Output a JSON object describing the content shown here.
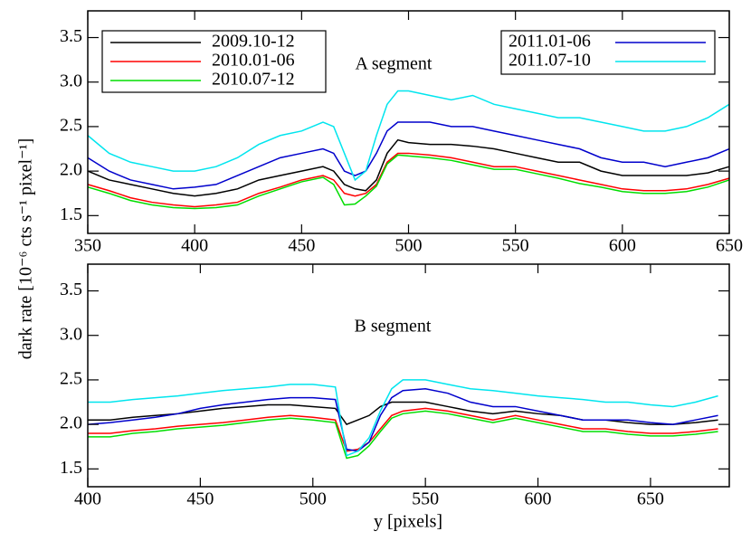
{
  "chart_data": [
    {
      "type": "line",
      "annotation": "A segment",
      "ylabel": "dark rate [10⁻⁶ cts s⁻¹ pixel⁻¹]",
      "x": [
        350,
        360,
        370,
        380,
        390,
        400,
        410,
        420,
        430,
        440,
        450,
        460,
        465,
        470,
        475,
        480,
        485,
        490,
        495,
        500,
        510,
        520,
        530,
        540,
        550,
        560,
        570,
        580,
        590,
        600,
        610,
        620,
        630,
        640,
        650
      ],
      "xlim": [
        350,
        650
      ],
      "xticks": [
        350,
        400,
        450,
        500,
        550,
        600,
        650
      ],
      "ylim": [
        1.3,
        3.8
      ],
      "yticks": [
        1.5,
        {
          "value": 2,
          "label": "2.0"
        },
        2.5,
        {
          "value": 3,
          "label": "3.0"
        },
        3.5
      ],
      "series": [
        {
          "name": "2009.10-12",
          "color": "#000000",
          "values": [
            2.0,
            1.9,
            1.85,
            1.8,
            1.75,
            1.72,
            1.75,
            1.8,
            1.9,
            1.95,
            2.0,
            2.05,
            2.0,
            1.85,
            1.8,
            1.78,
            1.9,
            2.2,
            2.35,
            2.32,
            2.3,
            2.3,
            2.28,
            2.25,
            2.2,
            2.15,
            2.1,
            2.1,
            2.0,
            1.95,
            1.95,
            1.95,
            1.95,
            1.98,
            2.05
          ]
        },
        {
          "name": "2010.01-06",
          "color": "#ff0000",
          "values": [
            1.85,
            1.78,
            1.7,
            1.65,
            1.62,
            1.6,
            1.62,
            1.65,
            1.75,
            1.82,
            1.9,
            1.95,
            1.9,
            1.75,
            1.72,
            1.75,
            1.85,
            2.1,
            2.2,
            2.2,
            2.18,
            2.15,
            2.1,
            2.05,
            2.05,
            2.0,
            1.95,
            1.9,
            1.85,
            1.8,
            1.78,
            1.78,
            1.8,
            1.85,
            1.92
          ]
        },
        {
          "name": "2010.07-12",
          "color": "#00dd00",
          "values": [
            1.82,
            1.75,
            1.67,
            1.62,
            1.59,
            1.58,
            1.59,
            1.62,
            1.72,
            1.8,
            1.88,
            1.93,
            1.85,
            1.62,
            1.63,
            1.72,
            1.83,
            2.08,
            2.18,
            2.17,
            2.15,
            2.12,
            2.07,
            2.02,
            2.02,
            1.97,
            1.92,
            1.86,
            1.82,
            1.77,
            1.75,
            1.75,
            1.77,
            1.82,
            1.9
          ]
        },
        {
          "name": "2011.01-06",
          "color": "#0000cc",
          "values": [
            2.15,
            2.0,
            1.9,
            1.85,
            1.8,
            1.82,
            1.85,
            1.95,
            2.05,
            2.15,
            2.2,
            2.25,
            2.2,
            2.0,
            1.95,
            2.0,
            2.2,
            2.45,
            2.55,
            2.55,
            2.55,
            2.5,
            2.5,
            2.45,
            2.4,
            2.35,
            2.3,
            2.25,
            2.15,
            2.1,
            2.1,
            2.05,
            2.1,
            2.15,
            2.25
          ]
        },
        {
          "name": "2011.07-10",
          "color": "#00e5ee",
          "values": [
            2.4,
            2.2,
            2.1,
            2.05,
            2.0,
            2.0,
            2.05,
            2.15,
            2.3,
            2.4,
            2.45,
            2.55,
            2.5,
            2.2,
            1.9,
            2.0,
            2.4,
            2.75,
            2.9,
            2.9,
            2.85,
            2.8,
            2.85,
            2.75,
            2.7,
            2.65,
            2.6,
            2.6,
            2.55,
            2.5,
            2.45,
            2.45,
            2.5,
            2.6,
            2.75
          ]
        }
      ]
    },
    {
      "type": "line",
      "annotation": "B segment",
      "xlabel": "y [pixels]",
      "x": [
        400,
        410,
        420,
        430,
        440,
        450,
        460,
        470,
        480,
        490,
        500,
        510,
        515,
        520,
        525,
        530,
        535,
        540,
        550,
        560,
        570,
        580,
        590,
        600,
        610,
        620,
        630,
        640,
        650,
        660,
        670,
        680
      ],
      "xlim": [
        400,
        685
      ],
      "xticks": [
        400,
        450,
        500,
        550,
        600,
        650
      ],
      "ylim": [
        1.3,
        3.8
      ],
      "yticks": [
        1.5,
        {
          "value": 2,
          "label": "2.0"
        },
        2.5,
        {
          "value": 3,
          "label": "3.0"
        },
        3.5
      ],
      "series": [
        {
          "color": "#000000",
          "values": [
            2.05,
            2.05,
            2.08,
            2.1,
            2.12,
            2.15,
            2.18,
            2.2,
            2.22,
            2.22,
            2.2,
            2.18,
            2.0,
            2.05,
            2.1,
            2.2,
            2.25,
            2.25,
            2.25,
            2.2,
            2.15,
            2.12,
            2.15,
            2.12,
            2.1,
            2.05,
            2.05,
            2.02,
            2.0,
            2.0,
            2.02,
            2.05
          ]
        },
        {
          "color": "#ff0000",
          "values": [
            1.9,
            1.9,
            1.93,
            1.95,
            1.98,
            2.0,
            2.02,
            2.05,
            2.08,
            2.1,
            2.08,
            2.05,
            1.7,
            1.72,
            1.8,
            1.95,
            2.1,
            2.15,
            2.18,
            2.15,
            2.1,
            2.05,
            2.1,
            2.05,
            2.0,
            1.95,
            1.95,
            1.92,
            1.9,
            1.9,
            1.92,
            1.95
          ]
        },
        {
          "color": "#00dd00",
          "values": [
            1.86,
            1.86,
            1.9,
            1.92,
            1.95,
            1.97,
            1.99,
            2.02,
            2.05,
            2.07,
            2.05,
            2.02,
            1.62,
            1.65,
            1.76,
            1.92,
            2.07,
            2.12,
            2.15,
            2.12,
            2.07,
            2.02,
            2.07,
            2.02,
            1.97,
            1.92,
            1.92,
            1.89,
            1.87,
            1.87,
            1.89,
            1.92
          ]
        },
        {
          "color": "#0000cc",
          "values": [
            2.0,
            2.02,
            2.05,
            2.08,
            2.12,
            2.18,
            2.22,
            2.25,
            2.28,
            2.3,
            2.3,
            2.28,
            1.72,
            1.7,
            1.8,
            2.1,
            2.3,
            2.38,
            2.4,
            2.35,
            2.25,
            2.2,
            2.2,
            2.15,
            2.1,
            2.05,
            2.05,
            2.05,
            2.02,
            2.0,
            2.05,
            2.1
          ]
        },
        {
          "color": "#00e5ee",
          "values": [
            2.25,
            2.25,
            2.28,
            2.3,
            2.32,
            2.35,
            2.38,
            2.4,
            2.42,
            2.45,
            2.45,
            2.42,
            1.65,
            1.7,
            1.85,
            2.15,
            2.4,
            2.5,
            2.5,
            2.45,
            2.4,
            2.38,
            2.35,
            2.32,
            2.3,
            2.28,
            2.25,
            2.25,
            2.22,
            2.2,
            2.25,
            2.32
          ]
        }
      ]
    }
  ]
}
